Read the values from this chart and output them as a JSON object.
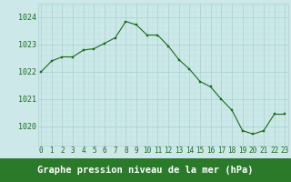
{
  "x": [
    0,
    1,
    2,
    3,
    4,
    5,
    6,
    7,
    8,
    9,
    10,
    11,
    12,
    13,
    14,
    15,
    16,
    17,
    18,
    19,
    20,
    21,
    22,
    23
  ],
  "y": [
    1022.0,
    1022.4,
    1022.55,
    1022.55,
    1022.8,
    1022.85,
    1023.05,
    1023.25,
    1023.85,
    1023.72,
    1023.35,
    1023.35,
    1022.95,
    1022.45,
    1022.1,
    1021.65,
    1021.45,
    1021.0,
    1020.6,
    1019.85,
    1019.72,
    1019.85,
    1020.45,
    1020.45
  ],
  "line_color": "#1a6b1a",
  "marker_color": "#1a6b1a",
  "bg_color": "#cce8e8",
  "grid_major_color": "#aad4d4",
  "grid_minor_color": "#bde0e0",
  "bottom_bar_color": "#2a7a2a",
  "xlabel": "Graphe pression niveau de la mer (hPa)",
  "xlabel_color": "#ffffff",
  "xlabel_fontsize": 7.5,
  "tick_label_color": "#1a6b1a",
  "tick_label_fontsize": 5.5,
  "ytick_labels": [
    1020,
    1021,
    1022,
    1023,
    1024
  ],
  "ytick_fontsize": 6,
  "ylim": [
    1019.3,
    1024.5
  ],
  "xlim": [
    -0.3,
    23.3
  ]
}
